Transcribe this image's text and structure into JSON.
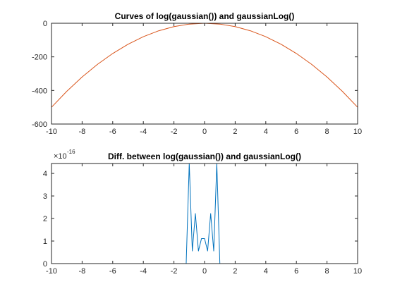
{
  "chart_data": [
    {
      "type": "line",
      "title": "Curves of log(gaussian()) and gaussianLog()",
      "xlim": [
        -10,
        10
      ],
      "ylim": [
        -600,
        0
      ],
      "xticks": [
        -10,
        -8,
        -6,
        -4,
        -2,
        0,
        2,
        4,
        6,
        8,
        10
      ],
      "yticks": [
        -600,
        -400,
        -200,
        0
      ],
      "x_tick_labels": [
        "-10",
        "-8",
        "-6",
        "-4",
        "-2",
        "0",
        "2",
        "4",
        "6",
        "8",
        "10"
      ],
      "y_tick_labels": [
        "-600",
        "-400",
        "-200",
        "0"
      ],
      "grid": false,
      "series": [
        {
          "color": "#D95319",
          "x": [
            -10,
            -9,
            -8,
            -7,
            -6,
            -5,
            -4,
            -3,
            -2,
            -1,
            0,
            1,
            2,
            3,
            4,
            5,
            6,
            7,
            8,
            9,
            10
          ],
          "y": [
            -500,
            -405,
            -320,
            -245,
            -180,
            -125,
            -80,
            -45,
            -20,
            -5,
            0,
            -5,
            -20,
            -45,
            -80,
            -125,
            -180,
            -245,
            -320,
            -405,
            -500
          ]
        }
      ]
    },
    {
      "type": "line",
      "title": "Diff. between log(gaussian()) and gaussianLog()",
      "xlim": [
        -10,
        10
      ],
      "ylim": [
        0,
        4.44
      ],
      "xticks": [
        -10,
        -8,
        -6,
        -4,
        -2,
        0,
        2,
        4,
        6,
        8,
        10
      ],
      "yticks": [
        0,
        1,
        2,
        3,
        4
      ],
      "x_tick_labels": [
        "-10",
        "-8",
        "-6",
        "-4",
        "-2",
        "0",
        "2",
        "4",
        "6",
        "8",
        "10"
      ],
      "y_tick_labels": [
        "0",
        "1",
        "2",
        "3",
        "4"
      ],
      "y_exponent_base": "×10",
      "y_exponent_power": "-16",
      "grid": false,
      "series": [
        {
          "color": "#0072BD",
          "x": [
            -10,
            -1.2,
            -1.0,
            -0.8,
            -0.6,
            -0.4,
            -0.2,
            0,
            0.2,
            0.4,
            0.6,
            0.8,
            1.0,
            10
          ],
          "y": [
            0,
            0,
            4.44,
            0.56,
            2.22,
            0.56,
            1.11,
            1.11,
            0.56,
            2.22,
            0.56,
            4.44,
            0,
            0
          ]
        }
      ]
    }
  ]
}
